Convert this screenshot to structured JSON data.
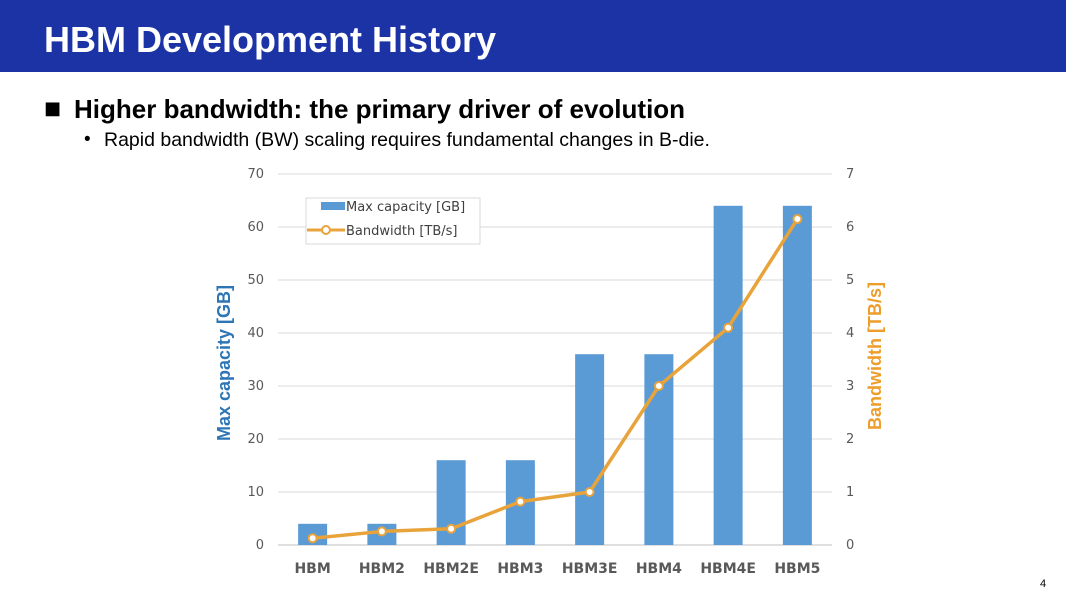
{
  "slide": {
    "title": "HBM Development History",
    "bullet": "Higher bandwidth: the primary driver of evolution",
    "bullet_marker": "■",
    "sub_bullet": "Rapid bandwidth (BW) scaling requires fundamental changes in B-die.",
    "sub_bullet_marker": "•",
    "page_number": "4"
  },
  "colors": {
    "header_bg": "#1c33a6",
    "bar": "#5b9bd5",
    "line": "#e8a33b",
    "left_axis_title": "#2e75b6",
    "right_axis_title": "#ed9e2a"
  },
  "chart_data": {
    "type": "bar",
    "categories": [
      "HBM",
      "HBM2",
      "HBM2E",
      "HBM3",
      "HBM3E",
      "HBM4",
      "HBM4E",
      "HBM5"
    ],
    "series": [
      {
        "name": "Max capacity [GB]",
        "type": "bar",
        "axis": "left",
        "values": [
          4,
          4,
          16,
          16,
          36,
          36,
          64,
          64
        ]
      },
      {
        "name": "Bandwidth [TB/s]",
        "type": "line",
        "axis": "right",
        "values": [
          0.128,
          0.256,
          0.307,
          0.819,
          1.0,
          3.0,
          4.1,
          6.15
        ]
      }
    ],
    "ylabel": "Max capacity [GB]",
    "y2label": "Bandwidth [TB/s]",
    "ylim": [
      0,
      70
    ],
    "y2lim": [
      0,
      7
    ],
    "yticks": [
      0,
      10,
      20,
      30,
      40,
      50,
      60,
      70
    ],
    "y2ticks": [
      0,
      1,
      2,
      3,
      4,
      5,
      6,
      7
    ],
    "grid": true,
    "legend_position": "top-left"
  }
}
